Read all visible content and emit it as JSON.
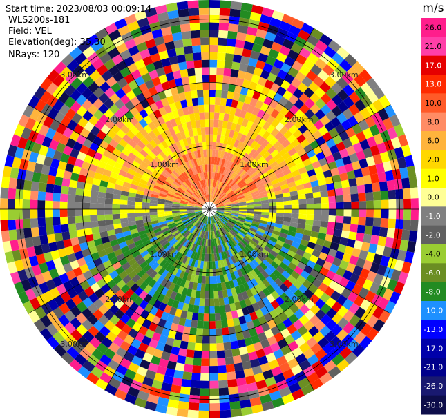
{
  "header": {
    "start_time": "Start time: 2023/08/03 00:09:14",
    "instrument": "WLS200s-181",
    "field": "Field: VEL",
    "elevation": "Elevation(deg): 35.30",
    "nrays": "NRays: 120"
  },
  "chart_data": {
    "type": "heatmap",
    "title": "",
    "projection": "polar-ppi",
    "nrays": 120,
    "range_rings": [
      {
        "radius_km": 1.0,
        "label": "1.00km"
      },
      {
        "radius_km": 2.0,
        "label": "2.00km"
      },
      {
        "radius_km": 3.0,
        "label": "3.00km"
      }
    ],
    "max_range_km": 3.3,
    "spoke_angles_deg": [
      0,
      30,
      60,
      90,
      120,
      150,
      180,
      210,
      240,
      270,
      300,
      330
    ],
    "colorbar": {
      "unit": "m/s",
      "ticks": [
        "26.0",
        "21.0",
        "17.0",
        "13.0",
        "10.0",
        "8.0",
        "6.0",
        "2.0",
        "1.0",
        "0.0",
        "-1.0",
        "-2.0",
        "-4.0",
        "-6.0",
        "-8.0",
        "-10.0",
        "-13.0",
        "-17.0",
        "-21.0",
        "-26.0",
        "-30.0"
      ],
      "colors": [
        "#ff1e8c",
        "#ff3fa8",
        "#e60000",
        "#ff2a00",
        "#ff5a28",
        "#ff8c64",
        "#ffb43c",
        "#ffd700",
        "#ffff00",
        "#ffff96",
        "#808080",
        "#606060",
        "#9acd32",
        "#6b8e23",
        "#228b22",
        "#1e90ff",
        "#0000ff",
        "#0000aa",
        "#00008b",
        "#191970",
        "#0d0d4a"
      ]
    },
    "velocity_field_summary": {
      "north_sector": "positive 2 to 17 m/s (yellow/orange/salmon)",
      "east_west_center": "near 0 m/s (grey)",
      "south_sector": "negative -2 to -10 m/s (olive/green/blue)",
      "outer_ranges": "noise (mixed colors)"
    }
  }
}
